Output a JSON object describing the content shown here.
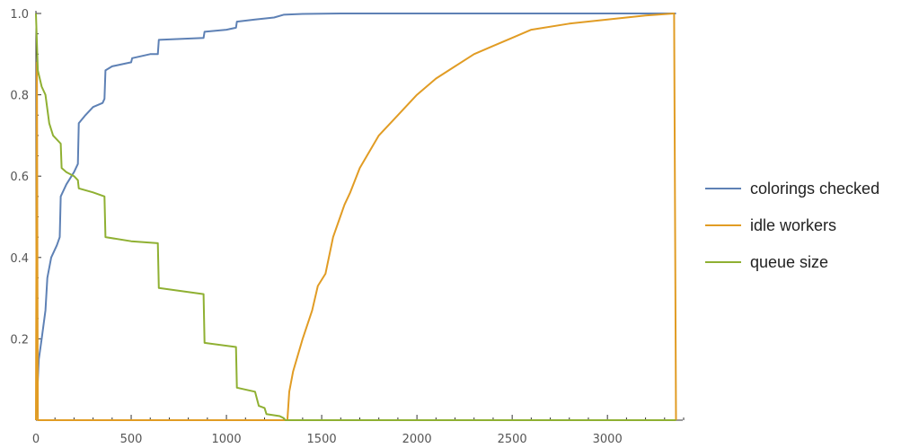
{
  "chart_data": {
    "type": "line",
    "title": "",
    "xlabel": "",
    "ylabel": "",
    "xlim": [
      0,
      3400
    ],
    "ylim": [
      0,
      1.0
    ],
    "grid": false,
    "legend_position": "right",
    "x_ticks": [
      0,
      500,
      1000,
      1500,
      2000,
      2500,
      3000
    ],
    "x_tick_labels": [
      "0",
      "500",
      "1000",
      "1500",
      "2000",
      "2500",
      "3000"
    ],
    "y_ticks": [
      0.2,
      0.4,
      0.6,
      0.8,
      1.0
    ],
    "y_tick_labels": [
      "0.2",
      "0.4",
      "0.6",
      "0.8",
      "1.0"
    ],
    "series": [
      {
        "name": "colorings checked",
        "color": "#5e81b5",
        "points": [
          [
            0,
            0
          ],
          [
            5,
            0.05
          ],
          [
            15,
            0.15
          ],
          [
            30,
            0.2
          ],
          [
            50,
            0.27
          ],
          [
            60,
            0.35
          ],
          [
            80,
            0.4
          ],
          [
            110,
            0.43
          ],
          [
            125,
            0.45
          ],
          [
            130,
            0.55
          ],
          [
            160,
            0.58
          ],
          [
            200,
            0.61
          ],
          [
            220,
            0.63
          ],
          [
            225,
            0.73
          ],
          [
            260,
            0.75
          ],
          [
            300,
            0.77
          ],
          [
            350,
            0.78
          ],
          [
            360,
            0.79
          ],
          [
            365,
            0.86
          ],
          [
            400,
            0.87
          ],
          [
            450,
            0.875
          ],
          [
            500,
            0.88
          ],
          [
            505,
            0.89
          ],
          [
            600,
            0.9
          ],
          [
            640,
            0.9
          ],
          [
            645,
            0.935
          ],
          [
            880,
            0.94
          ],
          [
            885,
            0.955
          ],
          [
            1000,
            0.96
          ],
          [
            1050,
            0.965
          ],
          [
            1055,
            0.98
          ],
          [
            1150,
            0.985
          ],
          [
            1250,
            0.99
          ],
          [
            1300,
            0.997
          ],
          [
            1400,
            0.999
          ],
          [
            1600,
            1.0
          ],
          [
            3360,
            1.0
          ]
        ]
      },
      {
        "name": "idle workers",
        "color": "#e19c24",
        "points": [
          [
            0,
            0
          ],
          [
            5,
            0.88
          ],
          [
            10,
            0
          ],
          [
            1320,
            0
          ],
          [
            1330,
            0.07
          ],
          [
            1350,
            0.12
          ],
          [
            1400,
            0.2
          ],
          [
            1450,
            0.27
          ],
          [
            1480,
            0.33
          ],
          [
            1520,
            0.36
          ],
          [
            1560,
            0.45
          ],
          [
            1620,
            0.53
          ],
          [
            1650,
            0.56
          ],
          [
            1700,
            0.62
          ],
          [
            1800,
            0.7
          ],
          [
            1900,
            0.75
          ],
          [
            2000,
            0.8
          ],
          [
            2100,
            0.84
          ],
          [
            2200,
            0.87
          ],
          [
            2300,
            0.9
          ],
          [
            2400,
            0.92
          ],
          [
            2500,
            0.94
          ],
          [
            2600,
            0.96
          ],
          [
            2800,
            0.975
          ],
          [
            3000,
            0.985
          ],
          [
            3200,
            0.995
          ],
          [
            3350,
            1.0
          ],
          [
            3360,
            0
          ]
        ]
      },
      {
        "name": "queue size",
        "color": "#8fb032",
        "points": [
          [
            0,
            1.0
          ],
          [
            10,
            0.86
          ],
          [
            30,
            0.82
          ],
          [
            50,
            0.8
          ],
          [
            70,
            0.73
          ],
          [
            90,
            0.7
          ],
          [
            130,
            0.68
          ],
          [
            135,
            0.62
          ],
          [
            160,
            0.61
          ],
          [
            200,
            0.6
          ],
          [
            220,
            0.59
          ],
          [
            225,
            0.57
          ],
          [
            300,
            0.56
          ],
          [
            360,
            0.55
          ],
          [
            365,
            0.45
          ],
          [
            500,
            0.44
          ],
          [
            640,
            0.435
          ],
          [
            645,
            0.325
          ],
          [
            880,
            0.31
          ],
          [
            885,
            0.19
          ],
          [
            1050,
            0.18
          ],
          [
            1055,
            0.08
          ],
          [
            1150,
            0.07
          ],
          [
            1170,
            0.035
          ],
          [
            1200,
            0.03
          ],
          [
            1210,
            0.015
          ],
          [
            1280,
            0.01
          ],
          [
            1300,
            0.005
          ],
          [
            1310,
            0.0
          ],
          [
            3360,
            0.0
          ]
        ]
      }
    ]
  }
}
